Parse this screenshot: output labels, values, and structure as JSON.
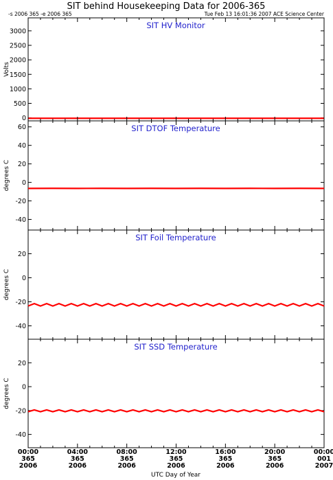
{
  "header": {
    "title": "SIT behind Housekeeping Data for 2006-365",
    "range_text": "-s 2006 365  -e 2006 365",
    "timestamp": "Tue Feb 13 16:01:36 2007 ACE Science Center"
  },
  "colors": {
    "series": "#ff0000",
    "panel_title": "#2222cc",
    "axis": "#000000"
  },
  "chart_data": [
    {
      "type": "line",
      "title": "SIT HV Monitor",
      "ylabel": "Volts",
      "ylim": [
        -80,
        3400
      ],
      "yticks": [
        0,
        500,
        1000,
        1500,
        2000,
        2500,
        3000
      ],
      "series": [
        {
          "values": [
            -15,
            -15,
            -15,
            -15,
            -15,
            -15,
            -15,
            -15,
            -15,
            -15,
            -15,
            -15,
            -15
          ]
        }
      ]
    },
    {
      "type": "line",
      "title": "SIT DTOF Temperature",
      "ylabel": "degrees C",
      "ylim": [
        -50,
        65
      ],
      "yticks": [
        -40,
        -20,
        0,
        20,
        40,
        60
      ],
      "series": [
        {
          "values": [
            -6.5,
            -6.4,
            -6.5,
            -6.4,
            -6.5,
            -6.4,
            -6.5,
            -6.4,
            -6.5,
            -6.4,
            -6.5,
            -6.4,
            -6.5
          ]
        }
      ]
    },
    {
      "type": "line",
      "title": "SIT Foil Temperature",
      "ylabel": "degrees C",
      "ylim": [
        -50,
        38
      ],
      "yticks": [
        -40,
        -20,
        0,
        20
      ],
      "series": [
        {
          "values": [
            -23.5,
            -21.5,
            -23.5,
            -21.5,
            -23.5,
            -21.5,
            -23.5,
            -21.5,
            -23.5,
            -21.5,
            -23.5,
            -21.5,
            -23.5,
            -21.5,
            -23.5,
            -21.5,
            -23.5,
            -21.5,
            -23.5,
            -21.5,
            -23.5,
            -21.5,
            -23.5,
            -21.5,
            -23.5,
            -21.5,
            -23.5,
            -21.5,
            -23.5,
            -21.5,
            -23.5,
            -21.5,
            -23.5,
            -21.5,
            -23.5,
            -21.5,
            -23.5,
            -21.5,
            -23.5,
            -21.5,
            -23.5,
            -21.5,
            -23.5,
            -21.5,
            -23.5,
            -21.5,
            -23.5,
            -21.5,
            -23.5
          ]
        }
      ]
    },
    {
      "type": "line",
      "title": "SIT SSD Temperature",
      "ylabel": "degrees C",
      "ylim": [
        -50,
        38
      ],
      "yticks": [
        -40,
        -20,
        0,
        20
      ],
      "series": [
        {
          "values": [
            -21,
            -19.5,
            -21,
            -19.5,
            -21,
            -19.5,
            -21,
            -19.5,
            -21,
            -19.5,
            -21,
            -19.5,
            -21,
            -19.5,
            -21,
            -19.5,
            -21,
            -19.5,
            -21,
            -19.5,
            -21,
            -19.5,
            -21,
            -19.5,
            -21,
            -19.5,
            -21,
            -19.5,
            -21,
            -19.5,
            -21,
            -19.5,
            -21,
            -19.5,
            -21,
            -19.5,
            -21,
            -19.5,
            -21,
            -19.5,
            -21,
            -19.5,
            -21,
            -19.5,
            -21,
            -19.5,
            -21,
            -19.5,
            -21
          ]
        }
      ]
    }
  ],
  "x_axis": {
    "label": "UTC Day of Year",
    "xlim": [
      0,
      24
    ],
    "ticks": [
      {
        "hour": 0,
        "time": "00:00",
        "day": "365",
        "year": "2006"
      },
      {
        "hour": 4,
        "time": "04:00",
        "day": "365",
        "year": "2006"
      },
      {
        "hour": 8,
        "time": "08:00",
        "day": "365",
        "year": "2006"
      },
      {
        "hour": 12,
        "time": "12:00",
        "day": "365",
        "year": "2006"
      },
      {
        "hour": 16,
        "time": "16:00",
        "day": "365",
        "year": "2006"
      },
      {
        "hour": 20,
        "time": "20:00",
        "day": "365",
        "year": "2006"
      },
      {
        "hour": 24,
        "time": "00:00",
        "day": "001",
        "year": "2007"
      }
    ]
  }
}
